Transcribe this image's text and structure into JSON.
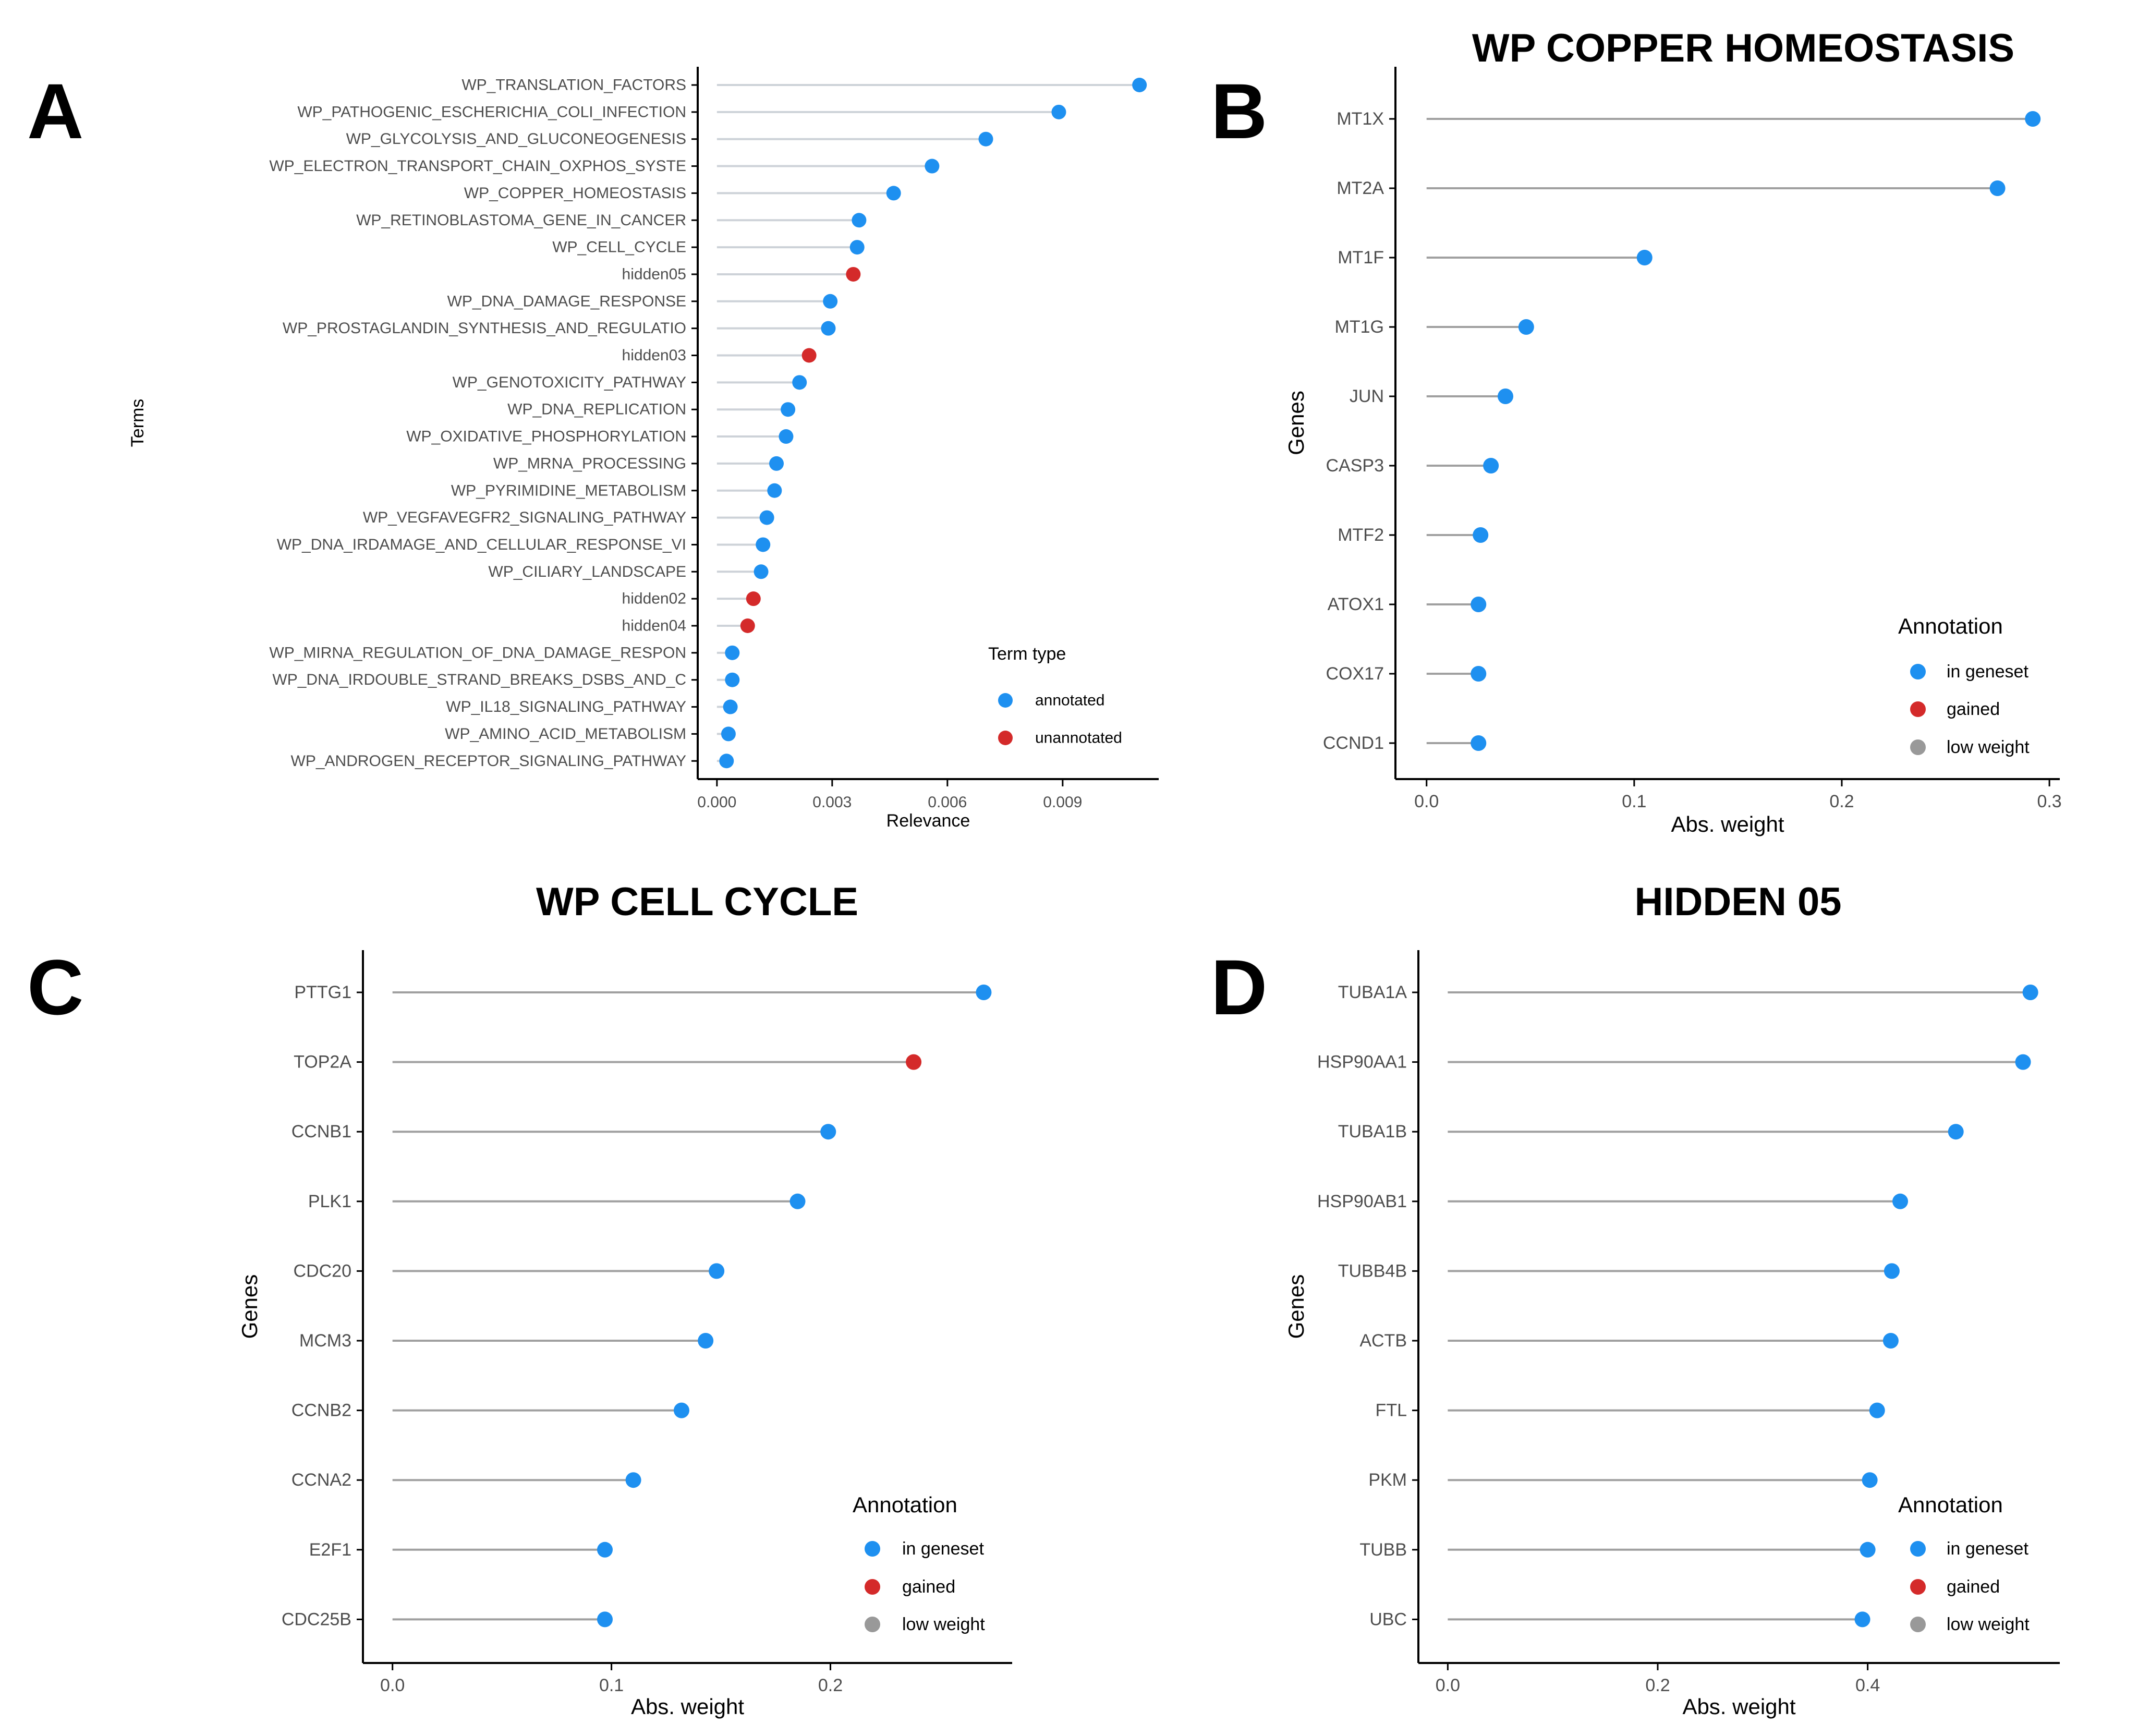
{
  "colors": {
    "annotated": "#1E90F0",
    "unannotated": "#D42A2A",
    "low_weight": "#999999",
    "stem": "#A0A0A0",
    "stem_light": "#CDD2D8",
    "axis": "#000000",
    "tick_text": "#4D4D4D",
    "title_text": "#000000"
  },
  "chart_data": [
    {
      "panel": "A",
      "type": "lollipop",
      "title": "",
      "xlabel": "Relevance",
      "ylabel": "Terms",
      "xlim": [
        -0.0005,
        0.0115
      ],
      "xticks": [
        0.0,
        0.003,
        0.006,
        0.009
      ],
      "xtick_labels": [
        "0.000",
        "0.003",
        "0.006",
        "0.009"
      ],
      "categories": [
        "WP_TRANSLATION_FACTORS",
        "WP_PATHOGENIC_ESCHERICHIA_COLI_INFECTION",
        "WP_GLYCOLYSIS_AND_GLUCONEOGENESIS",
        "WP_ELECTRON_TRANSPORT_CHAIN_OXPHOS_SYSTE",
        "WP_COPPER_HOMEOSTASIS",
        "WP_RETINOBLASTOMA_GENE_IN_CANCER",
        "WP_CELL_CYCLE",
        "hidden05",
        "WP_DNA_DAMAGE_RESPONSE",
        "WP_PROSTAGLANDIN_SYNTHESIS_AND_REGULATIO",
        "hidden03",
        "WP_GENOTOXICITY_PATHWAY",
        "WP_DNA_REPLICATION",
        "WP_OXIDATIVE_PHOSPHORYLATION",
        "WP_MRNA_PROCESSING",
        "WP_PYRIMIDINE_METABOLISM",
        "WP_VEGFAVEGFR2_SIGNALING_PATHWAY",
        "WP_DNA_IRDAMAGE_AND_CELLULAR_RESPONSE_VI",
        "WP_CILIARY_LANDSCAPE",
        "hidden02",
        "hidden04",
        "WP_MIRNA_REGULATION_OF_DNA_DAMAGE_RESPON",
        "WP_DNA_IRDOUBLE_STRAND_BREAKS_DSBS_AND_C",
        "WP_IL18_SIGNALING_PATHWAY",
        "WP_AMINO_ACID_METABOLISM",
        "WP_ANDROGEN_RECEPTOR_SIGNALING_PATHWAY"
      ],
      "values": [
        0.011,
        0.0089,
        0.007,
        0.0056,
        0.0046,
        0.0037,
        0.00365,
        0.00355,
        0.00295,
        0.0029,
        0.0024,
        0.00215,
        0.00185,
        0.0018,
        0.00155,
        0.0015,
        0.0013,
        0.0012,
        0.00115,
        0.00095,
        0.0008,
        0.0004,
        0.0004,
        0.00035,
        0.0003,
        0.00025
      ],
      "types": [
        "annotated",
        "annotated",
        "annotated",
        "annotated",
        "annotated",
        "annotated",
        "annotated",
        "unannotated",
        "annotated",
        "annotated",
        "unannotated",
        "annotated",
        "annotated",
        "annotated",
        "annotated",
        "annotated",
        "annotated",
        "annotated",
        "annotated",
        "unannotated",
        "unannotated",
        "annotated",
        "annotated",
        "annotated",
        "annotated",
        "annotated"
      ],
      "legend": {
        "title": "Term type",
        "entries": [
          {
            "label": "annotated",
            "type": "annotated"
          },
          {
            "label": "unannotated",
            "type": "unannotated"
          }
        ],
        "position": "bottom-right"
      }
    },
    {
      "panel": "B",
      "type": "lollipop",
      "title": "WP COPPER HOMEOSTASIS",
      "xlabel": "Abs. weight",
      "ylabel": "Genes",
      "xlim": [
        -0.015,
        0.305
      ],
      "xticks": [
        0.0,
        0.1,
        0.2,
        0.3
      ],
      "xtick_labels": [
        "0.0",
        "0.1",
        "0.2",
        "0.3"
      ],
      "categories": [
        "MT1X",
        "MT2A",
        "MT1F",
        "MT1G",
        "JUN",
        "CASP3",
        "MTF2",
        "ATOX1",
        "COX17",
        "CCND1"
      ],
      "values": [
        0.292,
        0.275,
        0.105,
        0.048,
        0.038,
        0.031,
        0.026,
        0.025,
        0.025,
        0.025
      ],
      "types": [
        "in_geneset",
        "in_geneset",
        "in_geneset",
        "in_geneset",
        "in_geneset",
        "in_geneset",
        "in_geneset",
        "in_geneset",
        "in_geneset",
        "in_geneset"
      ],
      "legend": {
        "title": "Annotation",
        "entries": [
          {
            "label": "in geneset",
            "type": "in_geneset"
          },
          {
            "label": "gained",
            "type": "gained"
          },
          {
            "label": "low weight",
            "type": "low_weight"
          }
        ],
        "position": "bottom-right"
      }
    },
    {
      "panel": "C",
      "type": "lollipop",
      "title": "WP CELL CYCLE",
      "xlabel": "Abs. weight",
      "ylabel": "Genes",
      "xlim": [
        -0.0135,
        0.283
      ],
      "xticks": [
        0.0,
        0.1,
        0.2
      ],
      "xtick_labels": [
        "0.0",
        "0.1",
        "0.2"
      ],
      "categories": [
        "PTTG1",
        "TOP2A",
        "CCNB1",
        "PLK1",
        "CDC20",
        "MCM3",
        "CCNB2",
        "CCNA2",
        "E2F1",
        "CDC25B"
      ],
      "values": [
        0.27,
        0.238,
        0.199,
        0.185,
        0.148,
        0.143,
        0.132,
        0.11,
        0.097,
        0.097
      ],
      "types": [
        "in_geneset",
        "gained",
        "in_geneset",
        "in_geneset",
        "in_geneset",
        "in_geneset",
        "in_geneset",
        "in_geneset",
        "in_geneset",
        "in_geneset"
      ],
      "legend": {
        "title": "Annotation",
        "entries": [
          {
            "label": "in geneset",
            "type": "in_geneset"
          },
          {
            "label": "gained",
            "type": "gained"
          },
          {
            "label": "low weight",
            "type": "low_weight"
          }
        ],
        "position": "bottom-right"
      }
    },
    {
      "panel": "D",
      "type": "lollipop",
      "title": "HIDDEN 05",
      "xlabel": "Abs. weight",
      "ylabel": "Genes",
      "xlim": [
        -0.028,
        0.583
      ],
      "xticks": [
        0.0,
        0.2,
        0.4
      ],
      "xtick_labels": [
        "0.0",
        "0.2",
        "0.4"
      ],
      "categories": [
        "TUBA1A",
        "HSP90AA1",
        "TUBA1B",
        "HSP90AB1",
        "TUBB4B",
        "ACTB",
        "FTL",
        "PKM",
        "TUBB",
        "UBC"
      ],
      "values": [
        0.555,
        0.548,
        0.484,
        0.431,
        0.423,
        0.422,
        0.409,
        0.402,
        0.4,
        0.395
      ],
      "types": [
        "in_geneset",
        "in_geneset",
        "in_geneset",
        "in_geneset",
        "in_geneset",
        "in_geneset",
        "in_geneset",
        "in_geneset",
        "in_geneset",
        "in_geneset"
      ],
      "legend": {
        "title": "Annotation",
        "entries": [
          {
            "label": "in geneset",
            "type": "in_geneset"
          },
          {
            "label": "gained",
            "type": "gained"
          },
          {
            "label": "low weight",
            "type": "low_weight"
          }
        ],
        "position": "bottom-right"
      }
    }
  ]
}
